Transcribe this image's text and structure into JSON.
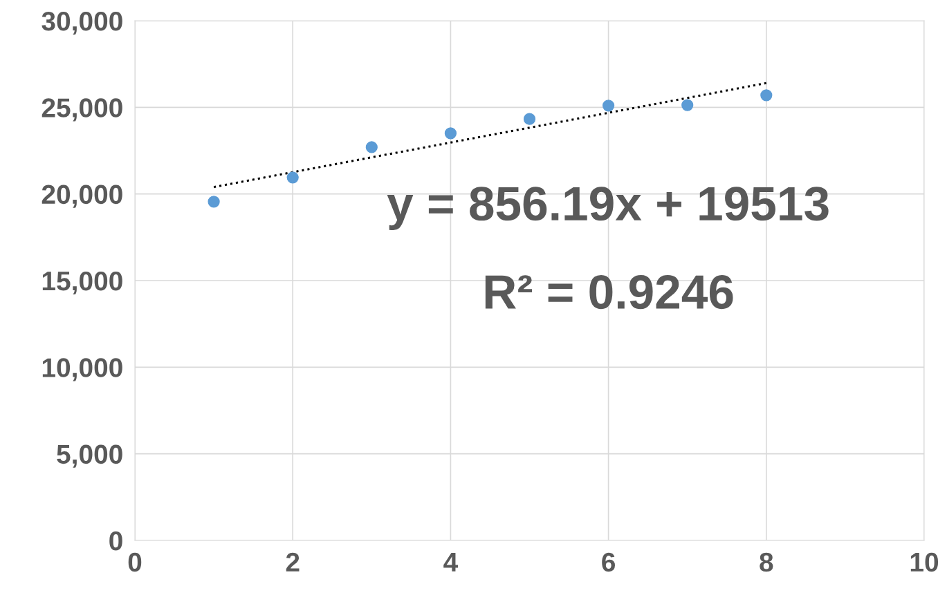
{
  "chart_data": {
    "type": "scatter",
    "x": [
      1,
      2,
      3,
      4,
      5,
      6,
      7,
      8
    ],
    "series": [
      {
        "color": "#5b9bd5",
        "marker": "circle",
        "values": [
          19550,
          20950,
          22700,
          23500,
          24330,
          25100,
          25130,
          25700
        ]
      },
      {
        "type": "line",
        "color": "#000000",
        "line_style": "dotted",
        "marker": "none",
        "x": [
          1,
          8
        ],
        "values": [
          20400,
          26400
        ]
      }
    ],
    "annotations": [
      "y = 856.19x + 19513",
      "R² = 0.9246"
    ],
    "xlim": [
      0,
      10
    ],
    "xticks": [
      0,
      2,
      4,
      6,
      8,
      10
    ],
    "ylim": [
      0,
      30000
    ],
    "yticks": [
      {
        "value": 0,
        "label": "0"
      },
      {
        "value": 5000,
        "label": "5,000"
      },
      {
        "value": 10000,
        "label": "10,000"
      },
      {
        "value": 15000,
        "label": "15,000"
      },
      {
        "value": 20000,
        "label": "20,000"
      },
      {
        "value": 25000,
        "label": "25,000"
      },
      {
        "value": 30000,
        "label": "30,000"
      }
    ],
    "grid": true,
    "legend": false
  }
}
